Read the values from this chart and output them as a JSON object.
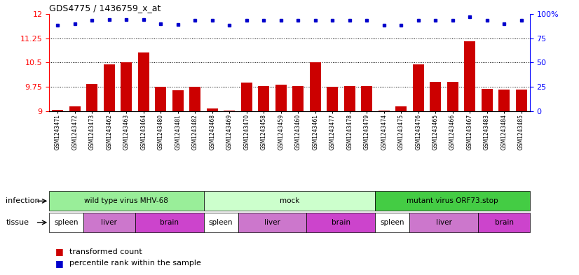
{
  "title": "GDS4775 / 1436759_x_at",
  "samples": [
    "GSM1243471",
    "GSM1243472",
    "GSM1243473",
    "GSM1243462",
    "GSM1243463",
    "GSM1243464",
    "GSM1243480",
    "GSM1243481",
    "GSM1243482",
    "GSM1243468",
    "GSM1243469",
    "GSM1243470",
    "GSM1243458",
    "GSM1243459",
    "GSM1243460",
    "GSM1243461",
    "GSM1243477",
    "GSM1243478",
    "GSM1243479",
    "GSM1243474",
    "GSM1243475",
    "GSM1243476",
    "GSM1243465",
    "GSM1243466",
    "GSM1243467",
    "GSM1243483",
    "GSM1243484",
    "GSM1243485"
  ],
  "bar_values": [
    9.05,
    9.15,
    9.85,
    10.45,
    10.5,
    10.8,
    9.75,
    9.65,
    9.75,
    9.1,
    9.03,
    9.88,
    9.77,
    9.83,
    9.77,
    10.5,
    9.75,
    9.77,
    9.77,
    9.02,
    9.15,
    10.45,
    9.9,
    9.9,
    11.15,
    9.7,
    9.68,
    9.68
  ],
  "percentile_values": [
    88,
    90,
    93,
    94,
    94,
    94,
    90,
    89,
    93,
    93,
    88,
    93,
    93,
    93,
    93,
    93,
    93,
    93,
    93,
    88,
    88,
    93,
    93,
    93,
    97,
    93,
    90,
    93
  ],
  "bar_color": "#cc0000",
  "percentile_color": "#0000cc",
  "ylim_left": [
    9,
    12
  ],
  "ylim_right": [
    0,
    100
  ],
  "yticks_left": [
    9,
    9.75,
    10.5,
    11.25,
    12
  ],
  "ytick_labels_left": [
    "9",
    "9.75",
    "10.5",
    "11.25",
    "12"
  ],
  "yticks_right": [
    0,
    25,
    50,
    75,
    100
  ],
  "ytick_labels_right": [
    "0",
    "25",
    "50",
    "75",
    "100%"
  ],
  "dotted_lines": [
    9.75,
    10.5,
    11.25
  ],
  "infection_groups": [
    {
      "label": "wild type virus MHV-68",
      "start": 0,
      "end": 9,
      "color": "#99ee99"
    },
    {
      "label": "mock",
      "start": 9,
      "end": 19,
      "color": "#ccffcc"
    },
    {
      "label": "mutant virus ORF73.stop",
      "start": 19,
      "end": 28,
      "color": "#44cc44"
    }
  ],
  "tissue_groups": [
    {
      "label": "spleen",
      "start": 0,
      "end": 2,
      "color": "#ffffff"
    },
    {
      "label": "liver",
      "start": 2,
      "end": 5,
      "color": "#cc77cc"
    },
    {
      "label": "brain",
      "start": 5,
      "end": 9,
      "color": "#cc44cc"
    },
    {
      "label": "spleen",
      "start": 9,
      "end": 11,
      "color": "#ffffff"
    },
    {
      "label": "liver",
      "start": 11,
      "end": 15,
      "color": "#cc77cc"
    },
    {
      "label": "brain",
      "start": 15,
      "end": 19,
      "color": "#cc44cc"
    },
    {
      "label": "spleen",
      "start": 19,
      "end": 21,
      "color": "#ffffff"
    },
    {
      "label": "liver",
      "start": 21,
      "end": 25,
      "color": "#cc77cc"
    },
    {
      "label": "brain",
      "start": 25,
      "end": 28,
      "color": "#cc44cc"
    }
  ],
  "infection_label": "infection",
  "tissue_label": "tissue",
  "legend_bar_label": "transformed count",
  "legend_dot_label": "percentile rank within the sample",
  "bg_color": "#ffffff",
  "plot_bg_color": "#ffffff"
}
